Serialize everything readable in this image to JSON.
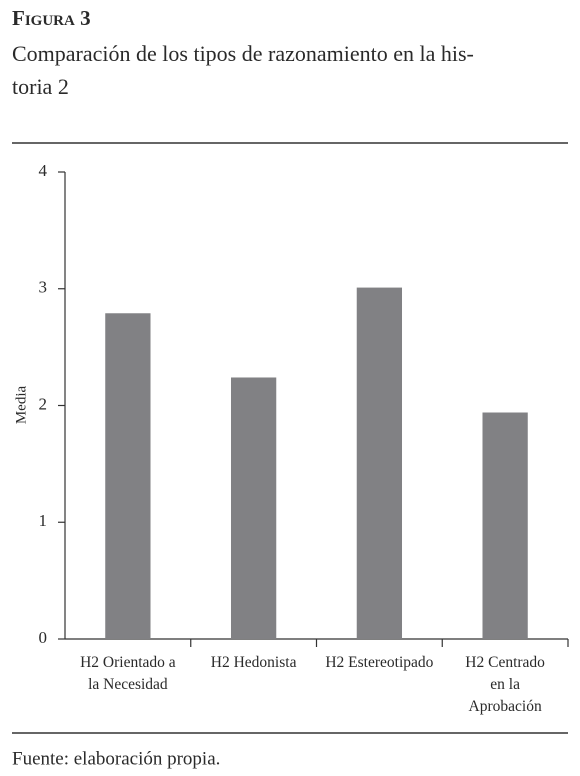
{
  "chart_data": {
    "type": "bar",
    "figure_label": "Figura 3",
    "title_lines": [
      "Comparación de los tipos de razonamiento en la his-",
      "toria 2"
    ],
    "y_label": "Media",
    "categories": [
      "H2 Orientado a\nla Necesidad",
      "H2 Hedonista",
      "H2 Estereotipado",
      "H2 Centrado\nen la\nAprobación"
    ],
    "values": [
      2.79,
      2.24,
      3.01,
      1.94
    ],
    "color": "#818184",
    "ylim": [
      0,
      4
    ],
    "yticks": [
      0,
      1,
      2,
      3,
      4
    ],
    "grid": false,
    "source": "Fuente: elaboración propia."
  }
}
